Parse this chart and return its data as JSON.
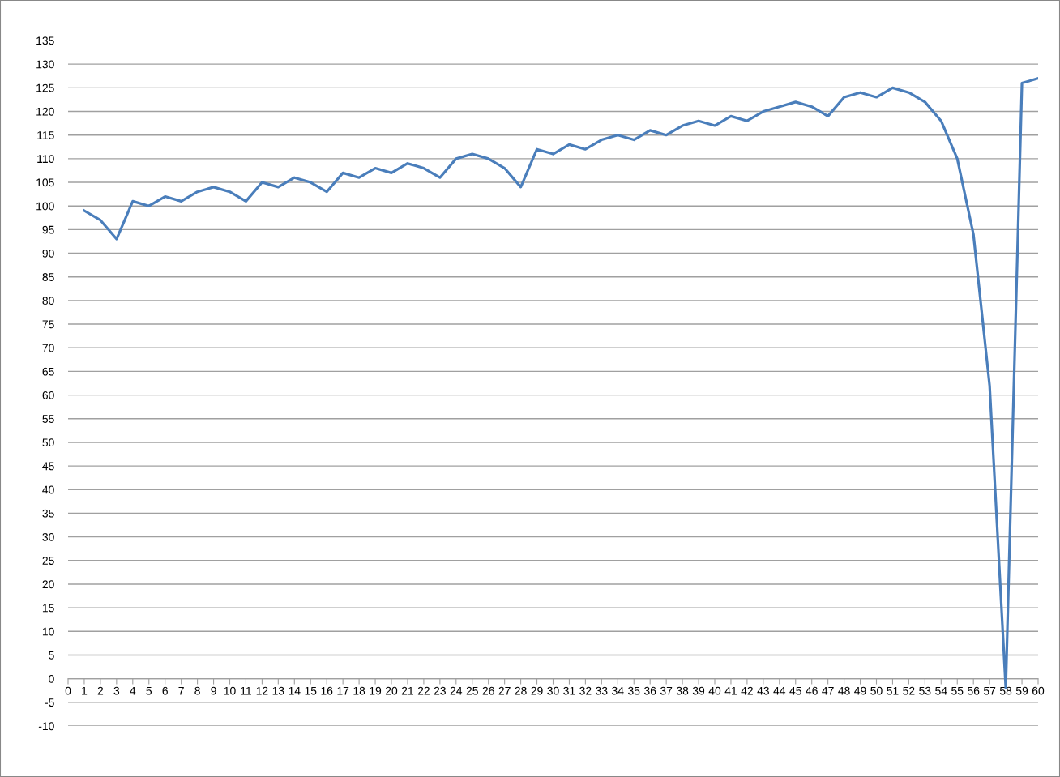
{
  "chart_data": {
    "type": "line",
    "x": [
      1,
      2,
      3,
      4,
      5,
      6,
      7,
      8,
      9,
      10,
      11,
      12,
      13,
      14,
      15,
      16,
      17,
      18,
      19,
      20,
      21,
      22,
      23,
      24,
      25,
      26,
      27,
      28,
      29,
      30,
      31,
      32,
      33,
      34,
      35,
      36,
      37,
      38,
      39,
      40,
      41,
      42,
      43,
      44,
      45,
      46,
      47,
      48,
      49,
      50,
      51,
      52,
      53,
      54,
      55,
      56,
      57,
      58,
      59,
      60
    ],
    "series": [
      {
        "color": "#4a7ebb",
        "values": [
          99,
          97,
          93,
          101,
          100,
          102,
          101,
          103,
          104,
          103,
          101,
          105,
          104,
          106,
          105,
          103,
          107,
          106,
          108,
          107,
          109,
          108,
          106,
          110,
          111,
          110,
          108,
          104,
          112,
          111,
          113,
          112,
          114,
          115,
          114,
          116,
          115,
          117,
          118,
          117,
          119,
          118,
          120,
          121,
          122,
          121,
          119,
          123,
          124,
          123,
          125,
          124,
          122,
          118,
          110,
          94,
          62,
          -2,
          126,
          127
        ]
      }
    ],
    "xlim": [
      0,
      60
    ],
    "xticks": [
      0,
      1,
      2,
      3,
      4,
      5,
      6,
      7,
      8,
      9,
      10,
      11,
      12,
      13,
      14,
      15,
      16,
      17,
      18,
      19,
      20,
      21,
      22,
      23,
      24,
      25,
      26,
      27,
      28,
      29,
      30,
      31,
      32,
      33,
      34,
      35,
      36,
      37,
      38,
      39,
      40,
      41,
      42,
      43,
      44,
      45,
      46,
      47,
      48,
      49,
      50,
      51,
      52,
      53,
      54,
      55,
      56,
      57,
      58,
      59,
      60
    ],
    "ylim": [
      -10,
      135
    ],
    "yticks": [
      -10,
      -5,
      0,
      5,
      10,
      15,
      20,
      25,
      30,
      35,
      40,
      45,
      50,
      55,
      60,
      65,
      70,
      75,
      80,
      85,
      90,
      95,
      100,
      105,
      110,
      115,
      120,
      125,
      130,
      135
    ],
    "grid": "y",
    "marker": "none",
    "line_style": "solid"
  }
}
